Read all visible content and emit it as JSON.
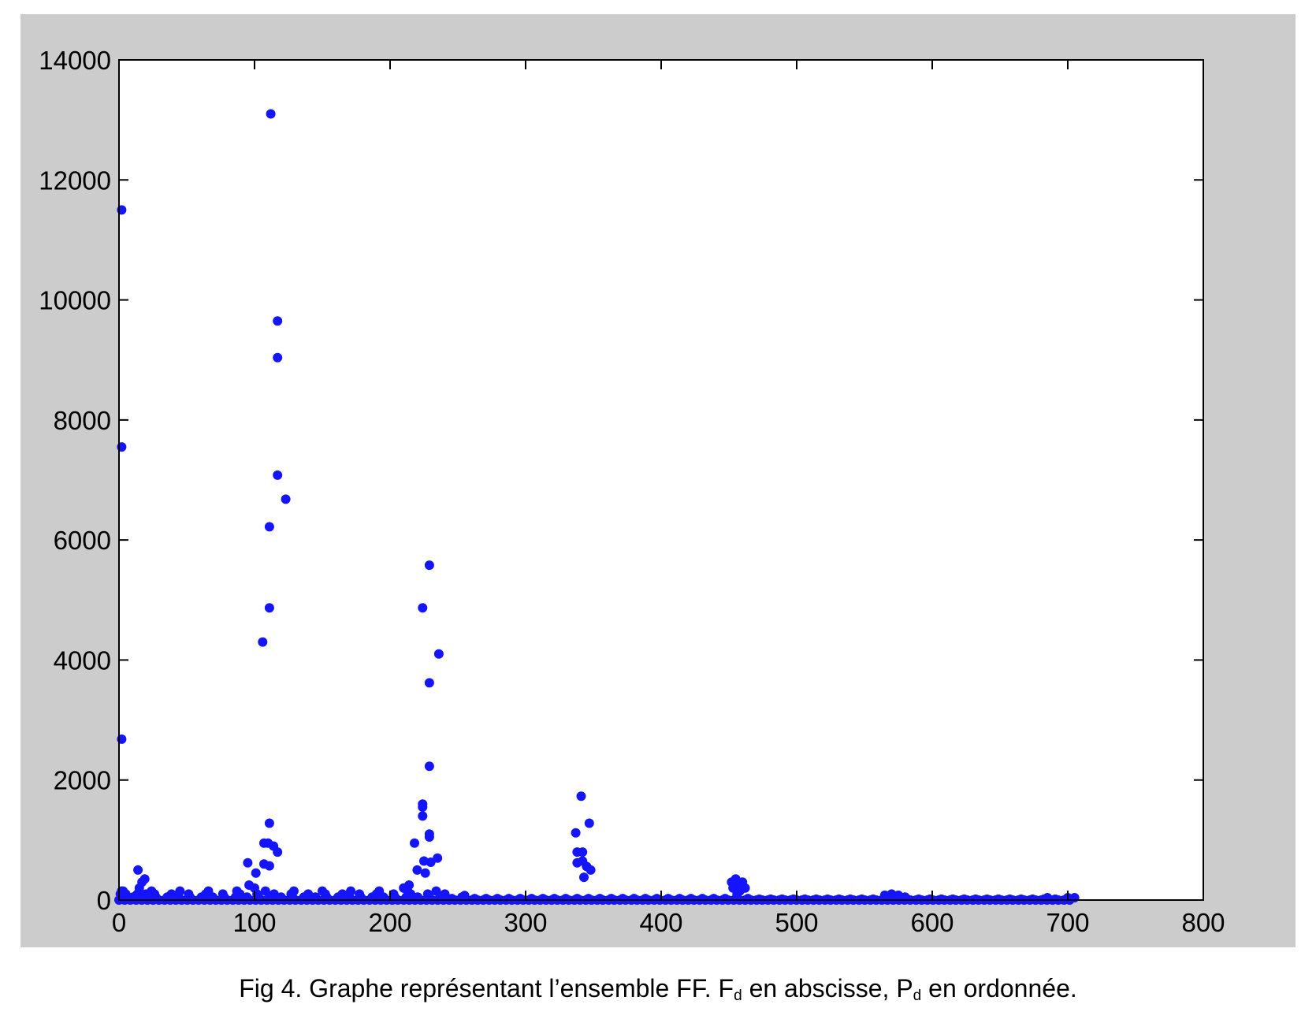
{
  "caption": {
    "lead": "Fig 4. Graphe représentant l’ensemble FF. F",
    "sub1": "d",
    "mid": " en abscisse, P",
    "sub2": "d",
    "tail": " en ordonnée."
  },
  "colors": {
    "figure_background": "#cccccc",
    "axes_background": "#ffffff",
    "marker": "#1414ff",
    "axis": "#000000"
  },
  "chart_data": {
    "type": "scatter",
    "title": "",
    "xlabel": "",
    "ylabel": "",
    "xlim": [
      0,
      800
    ],
    "ylim": [
      0,
      14000
    ],
    "xticks": [
      0,
      100,
      200,
      300,
      400,
      500,
      600,
      700,
      800
    ],
    "yticks": [
      0,
      2000,
      4000,
      6000,
      8000,
      10000,
      12000,
      14000
    ],
    "grid": false,
    "legend": "none",
    "marker": "filled-circle",
    "series": [
      {
        "points": [
          [
            2,
            11500
          ],
          [
            2,
            7550
          ],
          [
            2,
            2680
          ],
          [
            2,
            150
          ],
          [
            5,
            100
          ],
          [
            14,
            500
          ],
          [
            17,
            300
          ],
          [
            19,
            350
          ],
          [
            15,
            200
          ],
          [
            20,
            100
          ],
          [
            95,
            620
          ],
          [
            96,
            250
          ],
          [
            100,
            200
          ],
          [
            101,
            450
          ],
          [
            106,
            4300
          ],
          [
            107,
            950
          ],
          [
            107,
            600
          ],
          [
            110,
            950
          ],
          [
            111,
            6220
          ],
          [
            111,
            4870
          ],
          [
            111,
            1280
          ],
          [
            111,
            570
          ],
          [
            112,
            13100
          ],
          [
            114,
            900
          ],
          [
            117,
            9650
          ],
          [
            117,
            9040
          ],
          [
            117,
            7080
          ],
          [
            117,
            800
          ],
          [
            123,
            6680
          ],
          [
            210,
            200
          ],
          [
            214,
            250
          ],
          [
            218,
            950
          ],
          [
            220,
            500
          ],
          [
            224,
            4870
          ],
          [
            224,
            1600
          ],
          [
            224,
            1550
          ],
          [
            224,
            1400
          ],
          [
            225,
            650
          ],
          [
            226,
            450
          ],
          [
            229,
            5580
          ],
          [
            229,
            3620
          ],
          [
            229,
            2230
          ],
          [
            229,
            1100
          ],
          [
            229,
            1050
          ],
          [
            230,
            630
          ],
          [
            235,
            700
          ],
          [
            236,
            4100
          ],
          [
            337,
            1120
          ],
          [
            338,
            800
          ],
          [
            338,
            620
          ],
          [
            341,
            1730
          ],
          [
            342,
            800
          ],
          [
            342,
            650
          ],
          [
            343,
            380
          ],
          [
            345,
            560
          ],
          [
            347,
            1280
          ],
          [
            348,
            500
          ],
          [
            452,
            300
          ],
          [
            455,
            350
          ],
          [
            457,
            250
          ],
          [
            460,
            300
          ],
          [
            453,
            200
          ],
          [
            458,
            150
          ],
          [
            462,
            200
          ],
          [
            456,
            100
          ],
          [
            565,
            80
          ],
          [
            570,
            100
          ],
          [
            575,
            80
          ],
          [
            580,
            50
          ],
          [
            685,
            40
          ],
          [
            700,
            40
          ],
          [
            705,
            40
          ]
        ]
      }
    ],
    "baseline_band": {
      "x_range": [
        0,
        705
      ],
      "y_range": [
        0,
        180
      ],
      "description_values": [
        50,
        100,
        150
      ]
    }
  }
}
